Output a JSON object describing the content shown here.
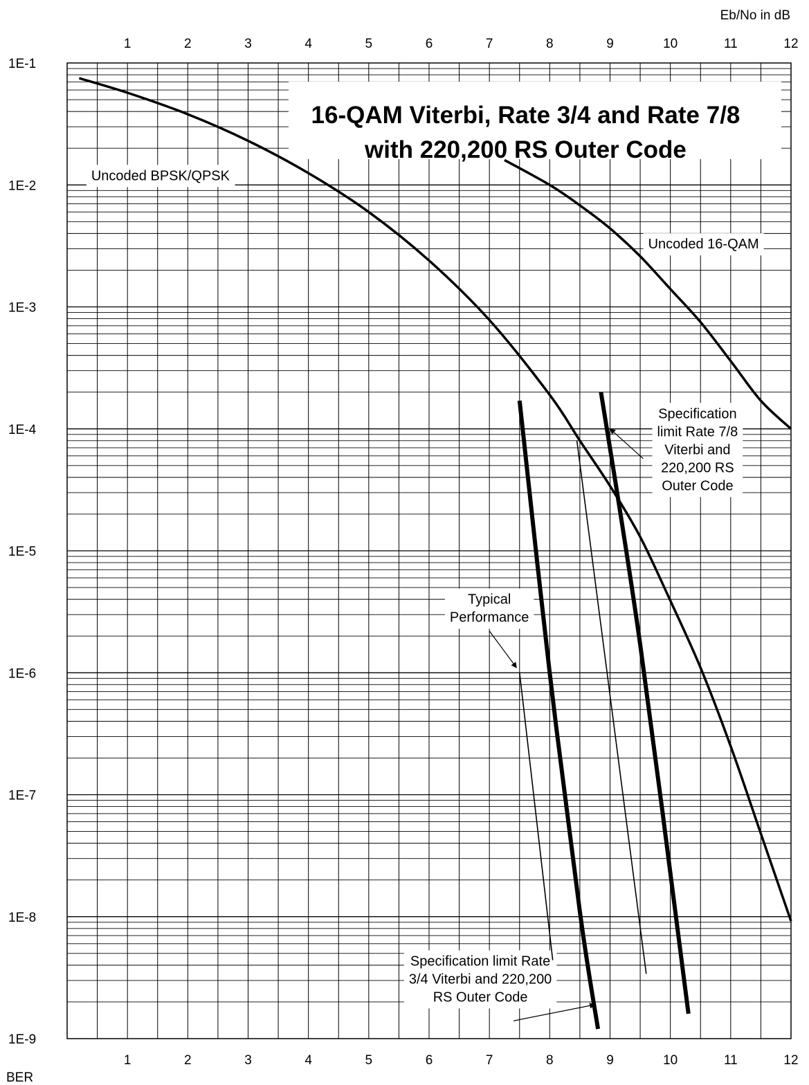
{
  "chart_data": {
    "type": "line",
    "title": [
      "16-QAM Viterbi, Rate 3/4 and Rate 7/8",
      "with 220,200 RS Outer Code"
    ],
    "xlabel": "Eb/No in dB",
    "ylabel": "BER",
    "xlim": [
      0,
      12
    ],
    "ylim": [
      1e-09,
      0.1
    ],
    "yscale": "log",
    "x_ticks": [
      "1",
      "2",
      "3",
      "4",
      "5",
      "6",
      "7",
      "8",
      "9",
      "10",
      "11",
      "12"
    ],
    "y_ticks": [
      "1E-1",
      "1E-2",
      "1E-3",
      "1E-4",
      "1E-5",
      "1E-6",
      "1E-7",
      "1E-8",
      "1E-9"
    ],
    "grid": true,
    "series": [
      {
        "name": "Uncoded BPSK/QPSK",
        "width": "medium",
        "points": [
          [
            0.2,
            0.075
          ],
          [
            1,
            0.057
          ],
          [
            2,
            0.038
          ],
          [
            3,
            0.023
          ],
          [
            4,
            0.0125
          ],
          [
            5,
            0.006
          ],
          [
            6,
            0.0024
          ],
          [
            7,
            0.00078
          ],
          [
            8,
            0.00019
          ],
          [
            8.5,
            8e-05
          ],
          [
            9,
            3.4e-05
          ],
          [
            9.5,
            1.3e-05
          ],
          [
            10,
            3.9e-06
          ],
          [
            10.5,
            1.1e-06
          ],
          [
            11,
            2.5e-07
          ],
          [
            11.5,
            4.8e-08
          ],
          [
            12,
            9.2e-09
          ]
        ]
      },
      {
        "name": "Uncoded 16-QAM",
        "width": "medium",
        "points": [
          [
            7.25,
            0.016
          ],
          [
            8,
            0.01
          ],
          [
            8.5,
            0.0068
          ],
          [
            9,
            0.0044
          ],
          [
            9.5,
            0.0026
          ],
          [
            10,
            0.0014
          ],
          [
            10.5,
            0.00075
          ],
          [
            11,
            0.00036
          ],
          [
            11.5,
            0.00017
          ],
          [
            12,
            0.0001
          ]
        ]
      },
      {
        "name": "Specification limit Rate 3/4 Viterbi and 220,200 RS Outer Code",
        "width": "thick",
        "points": [
          [
            7.5,
            0.00017
          ],
          [
            8,
            1e-06
          ],
          [
            8.5,
            1.1e-08
          ],
          [
            8.8,
            1.2e-09
          ]
        ]
      },
      {
        "name": "Typical Performance (Rate 3/4)",
        "width": "thin",
        "points": [
          [
            7.5,
            1e-06
          ],
          [
            8.05,
            4.4e-09
          ]
        ]
      },
      {
        "name": "Specification limit Rate 7/8 Viterbi and 220,200 RS Outer Code",
        "width": "thick",
        "points": [
          [
            8.85,
            0.0002
          ],
          [
            9.5,
            1.7e-06
          ],
          [
            10.3,
            1.6e-09
          ]
        ]
      },
      {
        "name": "Typical Performance (Rate 7/8)",
        "width": "thin",
        "points": [
          [
            8.45,
            8e-05
          ],
          [
            9.6,
            3.4e-09
          ]
        ]
      }
    ],
    "annotations": [
      {
        "text": [
          "Uncoded BPSK/QPSK"
        ],
        "at": [
          0.4,
          0.012
        ],
        "anchor": "start"
      },
      {
        "text": [
          "Uncoded 16-QAM"
        ],
        "at": [
          10.55,
          0.0033
        ],
        "anchor": "middle"
      },
      {
        "text": [
          "Specification",
          "limit  Rate 7/8",
          "Viterbi and",
          "220,200 RS",
          "Outer Code"
        ],
        "at": [
          10.45,
          6.8e-05
        ],
        "anchor": "middle"
      },
      {
        "text": [
          "Typical",
          "Performance"
        ],
        "at": [
          7.0,
          3.4e-06
        ],
        "anchor": "middle"
      },
      {
        "text": [
          "Specification limit  Rate",
          "3/4 Viterbi and 220,200",
          "RS Outer Code"
        ],
        "at": [
          6.85,
          3.1e-09
        ],
        "anchor": "middle"
      }
    ],
    "arrows": [
      {
        "from": [
          9.55,
          5.7e-05
        ],
        "to": [
          9.0,
          0.0001
        ]
      },
      {
        "from": [
          7.0,
          2.2e-06
        ],
        "to": [
          7.45,
          1.1e-06
        ]
      },
      {
        "from": [
          7.4,
          1.4e-09
        ],
        "to": [
          8.75,
          1.9e-09
        ]
      }
    ]
  }
}
